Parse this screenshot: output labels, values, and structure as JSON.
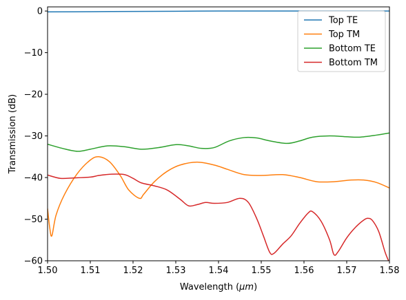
{
  "chart_data": {
    "type": "line",
    "title": "",
    "xlabel": "Wavelength (",
    "xlabel_unit": "μm",
    "xlabel_close": ")",
    "ylabel": "Transmission (dB)",
    "xlim": [
      1.5,
      1.58
    ],
    "ylim": [
      -60,
      1
    ],
    "x_ticks": [
      1.5,
      1.51,
      1.52,
      1.53,
      1.54,
      1.55,
      1.56,
      1.57,
      1.58
    ],
    "x_tick_labels": [
      "1.50",
      "1.51",
      "1.52",
      "1.53",
      "1.54",
      "1.55",
      "1.56",
      "1.57",
      "1.58"
    ],
    "y_ticks": [
      0,
      -10,
      -20,
      -30,
      -40,
      -50,
      -60
    ],
    "y_tick_labels": [
      "0",
      "−10",
      "−20",
      "−30",
      "−40",
      "−50",
      "−60"
    ],
    "grid": false,
    "legend_position": "top-right",
    "series": [
      {
        "name": "Top TE",
        "color": "#1f77b4",
        "x": [
          1.5,
          1.51,
          1.52,
          1.53,
          1.54,
          1.55,
          1.56,
          1.57,
          1.58
        ],
        "y": [
          -0.2,
          -0.15,
          -0.1,
          -0.05,
          0.0,
          0.0,
          0.0,
          0.0,
          0.0
        ]
      },
      {
        "name": "Top TM",
        "color": "#ff7f0e",
        "x": [
          1.5,
          1.5005,
          1.501,
          1.502,
          1.504,
          1.507,
          1.51,
          1.512,
          1.5145,
          1.517,
          1.519,
          1.5215,
          1.5225,
          1.525,
          1.528,
          1.531,
          1.535,
          1.539,
          1.542,
          1.546,
          1.55,
          1.555,
          1.559,
          1.563,
          1.567,
          1.571,
          1.574,
          1.577,
          1.58
        ],
        "y": [
          -47.5,
          -52.0,
          -54.0,
          -49.0,
          -44.0,
          -39.0,
          -35.8,
          -35.0,
          -36.2,
          -39.5,
          -43.0,
          -45.0,
          -44.0,
          -41.0,
          -38.5,
          -37.0,
          -36.3,
          -37.0,
          -38.0,
          -39.3,
          -39.5,
          -39.3,
          -40.0,
          -41.0,
          -41.0,
          -40.6,
          -40.6,
          -41.2,
          -42.5
        ]
      },
      {
        "name": "Bottom TE",
        "color": "#2ca02c",
        "x": [
          1.5,
          1.5035,
          1.507,
          1.51,
          1.514,
          1.518,
          1.522,
          1.526,
          1.53,
          1.533,
          1.536,
          1.539,
          1.5425,
          1.546,
          1.549,
          1.552,
          1.556,
          1.559,
          1.562,
          1.566,
          1.57,
          1.573,
          1.577,
          1.58
        ],
        "y": [
          -32.0,
          -33.0,
          -33.7,
          -33.2,
          -32.4,
          -32.6,
          -33.2,
          -32.8,
          -32.1,
          -32.4,
          -33.0,
          -32.8,
          -31.2,
          -30.4,
          -30.5,
          -31.2,
          -31.8,
          -31.2,
          -30.3,
          -30.0,
          -30.2,
          -30.3,
          -29.8,
          -29.3
        ]
      },
      {
        "name": "Bottom TM",
        "color": "#d62728",
        "x": [
          1.5,
          1.503,
          1.506,
          1.51,
          1.512,
          1.515,
          1.518,
          1.52,
          1.522,
          1.525,
          1.528,
          1.531,
          1.533,
          1.535,
          1.537,
          1.539,
          1.542,
          1.545,
          1.547,
          1.549,
          1.5505,
          1.552,
          1.553,
          1.555,
          1.557,
          1.559,
          1.561,
          1.562,
          1.564,
          1.566,
          1.567,
          1.568,
          1.57,
          1.572,
          1.574,
          1.575,
          1.576,
          1.5775,
          1.579,
          1.58
        ],
        "y": [
          -39.4,
          -40.2,
          -40.1,
          -39.9,
          -39.5,
          -39.2,
          -39.3,
          -40.2,
          -41.3,
          -42.0,
          -43.0,
          -45.2,
          -46.8,
          -46.5,
          -46.0,
          -46.2,
          -46.0,
          -45.0,
          -46.0,
          -50.0,
          -54.0,
          -58.0,
          -58.2,
          -56.0,
          -54.0,
          -51.0,
          -48.5,
          -48.2,
          -50.5,
          -55.0,
          -58.5,
          -57.8,
          -54.5,
          -52.0,
          -50.2,
          -49.8,
          -50.3,
          -53.0,
          -58.0,
          -60.5
        ]
      }
    ]
  }
}
